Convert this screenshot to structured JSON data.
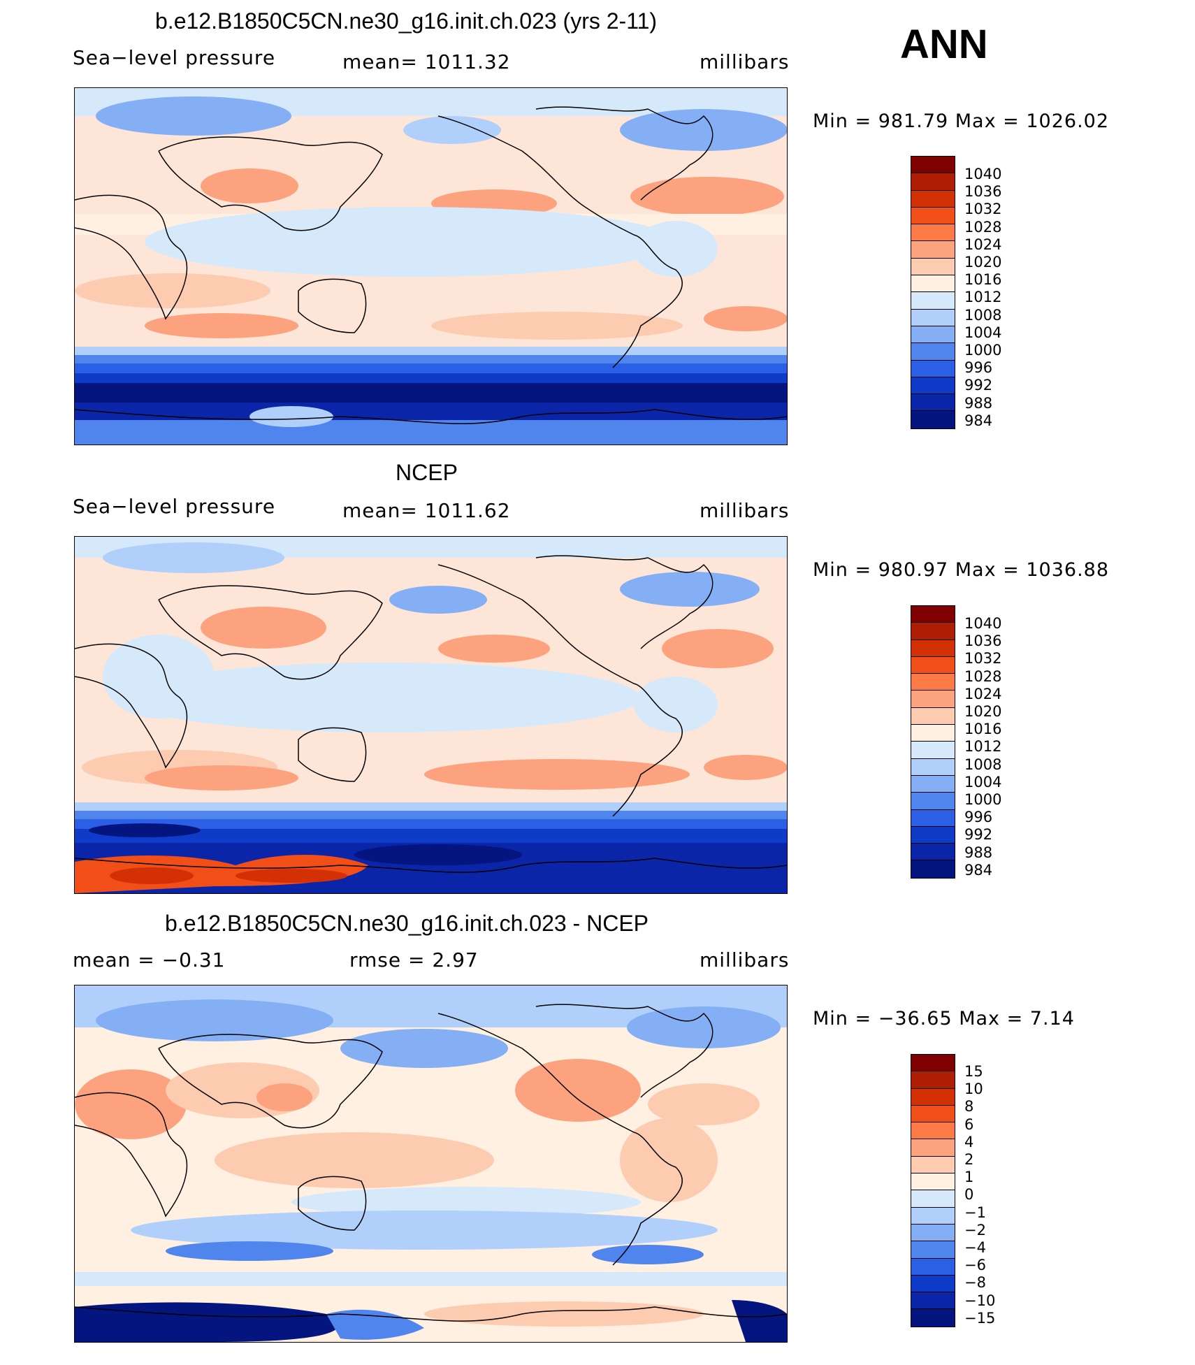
{
  "header": {
    "season": "ANN"
  },
  "panels": [
    {
      "title": "b.e12.B1850C5CN.ne30_g16.init.ch.023 (yrs 2-11)",
      "left": "Sea−level pressure",
      "center": "mean=  1011.32",
      "units": "millibars",
      "minmax": "Min  =  981.79  Max  =  1026.02",
      "colorbar_labels": [
        "1040",
        "1036",
        "1032",
        "1028",
        "1024",
        "1020",
        "1016",
        "1012",
        "1008",
        "1004",
        "1000",
        "996",
        "992",
        "988",
        "984"
      ]
    },
    {
      "title": "NCEP",
      "left": "Sea−level pressure",
      "center": "mean=  1011.62",
      "units": "millibars",
      "minmax": "Min  =  980.97  Max  =  1036.88",
      "colorbar_labels": [
        "1040",
        "1036",
        "1032",
        "1028",
        "1024",
        "1020",
        "1016",
        "1012",
        "1008",
        "1004",
        "1000",
        "996",
        "992",
        "988",
        "984"
      ]
    },
    {
      "title": "b.e12.B1850C5CN.ne30_g16.init.ch.023 - NCEP",
      "left": "mean  =    −0.31",
      "center": "rmse  =     2.97",
      "units": "millibars",
      "minmax": "Min  =  −36.65  Max  =      7.14",
      "colorbar_labels": [
        "15",
        "10",
        "8",
        "6",
        "4",
        "2",
        "1",
        "0",
        "−1",
        "−2",
        "−4",
        "−6",
        "−8",
        "−10",
        "−15"
      ]
    }
  ],
  "colorbar_colors": [
    "#7f0000",
    "#b01d05",
    "#d43005",
    "#f24e18",
    "#fb7a45",
    "#fca27e",
    "#fdcbb0",
    "#fff0e2",
    "#d6e9fb",
    "#b0d0fb",
    "#85aff4",
    "#4f85ec",
    "#2a5fe6",
    "#0e3cc9",
    "#0a25a8",
    "#051580"
  ]
}
